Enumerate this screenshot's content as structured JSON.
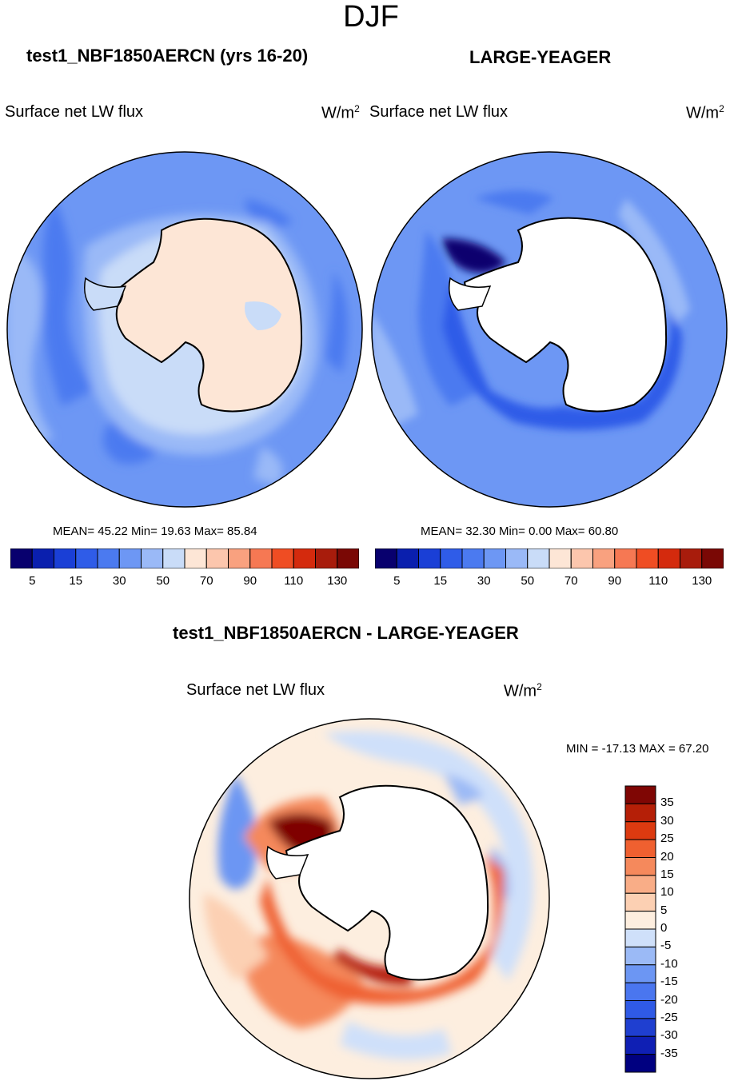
{
  "season": "DJF",
  "colors": {
    "abs_scale": [
      "#08006e",
      "#0a1fae",
      "#1a3fd6",
      "#2f5ce8",
      "#4b7af0",
      "#6d97f4",
      "#9ab9f7",
      "#c9dcf8",
      "#fde6d6",
      "#fcc6ad",
      "#f9a17f",
      "#f67853",
      "#ef4d23",
      "#d42a0d",
      "#a81c0c",
      "#7a0805"
    ],
    "diff_scale": [
      "#000080",
      "#0f1fb4",
      "#1f3fd0",
      "#2f5ae6",
      "#4a76ef",
      "#6c96f3",
      "#9bbaf6",
      "#cfe0fa",
      "#fdeedf",
      "#fcd0b3",
      "#f9ad87",
      "#f5895c",
      "#ef6030",
      "#dc3a10",
      "#b51f07",
      "#7f0604"
    ],
    "land": "#ffffff",
    "ocean_base": "#6d97f4"
  },
  "panels": [
    {
      "title": "test1_NBF1850AERCN (yrs 16-20)",
      "variable": "Surface net LW flux",
      "units_base": "W/m",
      "units_exp": "2",
      "stats": "MEAN=  45.22  Min=  19.63  Max=  85.84"
    },
    {
      "title": "LARGE-YEAGER",
      "variable": "Surface net LW flux",
      "units_base": "W/m",
      "units_exp": "2",
      "stats": "MEAN=  32.30  Min=   0.00  Max=  60.80"
    },
    {
      "title": "test1_NBF1850AERCN - LARGE-YEAGER",
      "variable": "Surface net LW flux",
      "units_base": "W/m",
      "units_exp": "2",
      "stats": "MIN = -17.13 MAX =  67.20"
    }
  ],
  "chart_data": [
    {
      "type": "heatmap",
      "projection": "polar stereographic, south pole",
      "title": "test1_NBF1850AERCN (yrs 16-20)",
      "variable": "Surface net LW flux",
      "units": "W/m2",
      "mean": 45.22,
      "min": 19.63,
      "max": 85.84,
      "colorbar_ticks": [
        "5",
        "15",
        "30",
        "50",
        "70",
        "90",
        "110",
        "130"
      ]
    },
    {
      "type": "heatmap",
      "projection": "polar stereographic, south pole",
      "title": "LARGE-YEAGER",
      "variable": "Surface net LW flux",
      "units": "W/m2",
      "mean": 32.3,
      "min": 0.0,
      "max": 60.8,
      "colorbar_ticks": [
        "5",
        "15",
        "30",
        "50",
        "70",
        "90",
        "110",
        "130"
      ]
    },
    {
      "type": "heatmap",
      "projection": "polar stereographic, south pole",
      "title": "test1_NBF1850AERCN - LARGE-YEAGER",
      "variable": "Surface net LW flux",
      "units": "W/m2",
      "min": -17.13,
      "max": 67.2,
      "colorbar_ticks": [
        "35",
        "30",
        "25",
        "20",
        "15",
        "10",
        "5",
        "0",
        "-5",
        "-10",
        "-15",
        "-20",
        "-25",
        "-30",
        "-35"
      ]
    }
  ]
}
